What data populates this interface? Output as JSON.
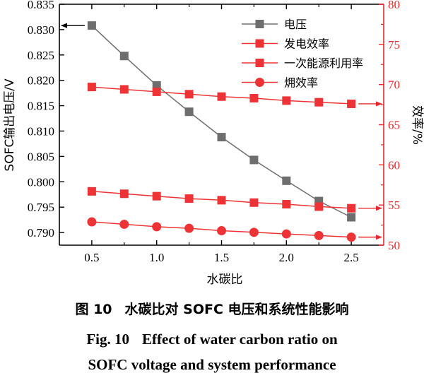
{
  "chart_data": {
    "type": "line",
    "x": [
      0.5,
      0.75,
      1.0,
      1.25,
      1.5,
      1.75,
      2.0,
      2.25,
      2.5
    ],
    "xlabel": "水碳比",
    "xlim": [
      0.25,
      2.75
    ],
    "xticks": [
      0.5,
      1.0,
      1.5,
      2.0,
      2.5
    ],
    "xtick_labels": [
      "0.5",
      "1.0",
      "1.5",
      "2.0",
      "2.5"
    ],
    "left_axis": {
      "label": "SOFC输出电压/V",
      "lim": [
        0.7875,
        0.835
      ],
      "ticks": [
        0.79,
        0.795,
        0.8,
        0.805,
        0.81,
        0.815,
        0.82,
        0.825,
        0.83,
        0.835
      ],
      "tick_labels": [
        "0.790",
        "0.795",
        "0.800",
        "0.805",
        "0.810",
        "0.815",
        "0.820",
        "0.825",
        "0.830",
        "0.835"
      ],
      "color": "#000000"
    },
    "right_axis": {
      "label": "效率/%",
      "lim": [
        50,
        80
      ],
      "ticks": [
        50,
        55,
        60,
        65,
        70,
        75,
        80
      ],
      "tick_labels": [
        "50",
        "55",
        "60",
        "65",
        "70",
        "75",
        "80"
      ],
      "color": "#e8282d"
    },
    "series": [
      {
        "name": "电压",
        "axis": "left",
        "marker": "square",
        "color": "#6e6e6e",
        "values": [
          0.8308,
          0.8248,
          0.819,
          0.8138,
          0.8088,
          0.8043,
          0.8002,
          0.7962,
          0.793
        ]
      },
      {
        "name": "发电效率",
        "axis": "right",
        "marker": "square",
        "color": "#ee3336",
        "values": [
          56.7,
          56.4,
          56.1,
          55.8,
          55.6,
          55.3,
          55.1,
          54.8,
          54.6
        ]
      },
      {
        "name": "一次能源利用率",
        "axis": "right",
        "marker": "square",
        "color": "#ee3336",
        "values": [
          69.7,
          69.4,
          69.1,
          68.8,
          68.5,
          68.3,
          68.0,
          67.8,
          67.6
        ]
      },
      {
        "name": "㶲效率",
        "axis": "right",
        "marker": "circle",
        "color": "#ee3336",
        "values": [
          52.9,
          52.6,
          52.3,
          52.1,
          51.8,
          51.6,
          51.4,
          51.2,
          51.0
        ]
      }
    ],
    "grid": false,
    "legend_position": "top-right"
  },
  "caption": {
    "cn_number": "图 10",
    "cn_text": "水碳比对 SOFC 电压和系统性能影响",
    "en_number": "Fig. 10",
    "en_line1": "Effect of water carbon ratio on",
    "en_line2": "SOFC voltage and system performance"
  }
}
